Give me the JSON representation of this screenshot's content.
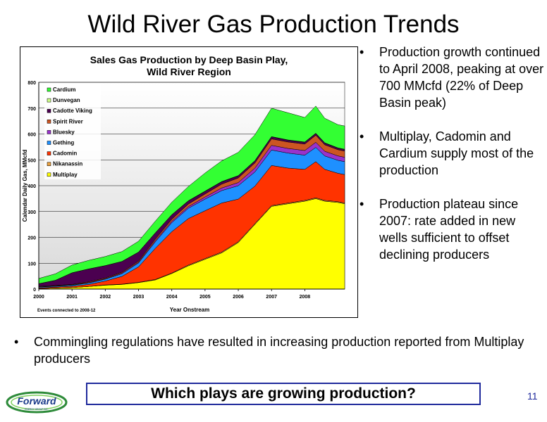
{
  "slide": {
    "title": "Wild River Gas Production Trends",
    "page_number": "11",
    "question": "Which plays are growing production?",
    "right_bullets": [
      "Production growth continued to April 2008, peaking at over 700 MMcfd (22% of Deep Basin peak)",
      "Multiplay, Cadomin and Cardium supply most of the production",
      "Production plateau since 2007: rate added in new wells sufficient to offset declining producers"
    ],
    "bottom_bullets": [
      "Commingling regulations have resulted in increasing production reported from Multiplay producers"
    ],
    "logo": {
      "text": "Forward",
      "tagline": "ENERGY GROUP INC."
    }
  },
  "chart_data": {
    "type": "area",
    "stacked": true,
    "title": "Sales Gas Production by Deep Basin Play, Wild River Region",
    "title_lines": [
      "Sales Gas Production by Deep Basin Play,",
      "Wild River Region"
    ],
    "xlabel": "Year Onstream",
    "ylabel": "Calendar Daily Gas, MMcfd",
    "footnote": "Events connected to 2008-12",
    "xlim": [
      2000,
      2009.2
    ],
    "ylim": [
      0,
      800
    ],
    "xticks": [
      2000,
      2001,
      2002,
      2003,
      2004,
      2005,
      2006,
      2007,
      2008
    ],
    "yticks": [
      0,
      100,
      200,
      300,
      400,
      500,
      600,
      700,
      800
    ],
    "grid": true,
    "legend_position": "top-left",
    "legend_order": [
      "Cardium",
      "Dunvegan",
      "Cadotte Viking",
      "Spirit River",
      "Bluesky",
      "Gething",
      "Cadomin",
      "Nikanassin",
      "Multiplay"
    ],
    "x": [
      2000,
      2000.5,
      2001,
      2001.5,
      2002,
      2002.5,
      2003,
      2003.5,
      2004,
      2004.5,
      2005,
      2005.5,
      2006,
      2006.5,
      2007,
      2007.5,
      2008,
      2008.33,
      2008.6,
      2009,
      2009.2
    ],
    "series": [
      {
        "name": "Multiplay",
        "color": "#ffff00",
        "values": [
          2,
          4,
          6,
          10,
          15,
          18,
          25,
          35,
          60,
          90,
          115,
          140,
          180,
          250,
          320,
          330,
          340,
          350,
          340,
          335,
          330
        ]
      },
      {
        "name": "Nikanassin",
        "color": "#e8a040",
        "values": [
          0,
          0,
          0,
          0,
          1,
          1,
          1,
          2,
          2,
          3,
          3,
          3,
          3,
          3,
          3,
          3,
          3,
          3,
          3,
          3,
          3
        ]
      },
      {
        "name": "Cadomin",
        "color": "#ff3300",
        "values": [
          3,
          4,
          5,
          8,
          15,
          30,
          60,
          120,
          160,
          180,
          185,
          190,
          165,
          145,
          155,
          135,
          120,
          140,
          120,
          110,
          110
        ]
      },
      {
        "name": "Gething",
        "color": "#1e90ff",
        "values": [
          3,
          3,
          4,
          5,
          7,
          10,
          15,
          25,
          35,
          40,
          45,
          48,
          52,
          55,
          60,
          58,
          55,
          55,
          52,
          50,
          50
        ]
      },
      {
        "name": "Bluesky",
        "color": "#9932cc",
        "values": [
          1,
          1,
          1,
          2,
          2,
          3,
          3,
          4,
          5,
          6,
          8,
          10,
          12,
          15,
          18,
          18,
          18,
          20,
          18,
          17,
          17
        ]
      },
      {
        "name": "Spirit River",
        "color": "#cc5522",
        "values": [
          2,
          2,
          2,
          3,
          3,
          3,
          4,
          6,
          8,
          10,
          12,
          15,
          18,
          20,
          25,
          25,
          25,
          27,
          25,
          24,
          24
        ]
      },
      {
        "name": "Cadotte Viking",
        "color": "#4b0050",
        "values": [
          10,
          20,
          45,
          50,
          48,
          42,
          35,
          25,
          18,
          12,
          10,
          9,
          8,
          8,
          8,
          7,
          7,
          7,
          7,
          6,
          6
        ]
      },
      {
        "name": "Dunvegan",
        "color": "#ccff88",
        "values": [
          0,
          0,
          0,
          0,
          0,
          0,
          0,
          0,
          0,
          1,
          1,
          1,
          1,
          1,
          1,
          1,
          1,
          1,
          1,
          1,
          1
        ]
      },
      {
        "name": "Cardium",
        "color": "#33ff33",
        "values": [
          20,
          25,
          30,
          33,
          35,
          38,
          42,
          45,
          48,
          55,
          70,
          80,
          90,
          100,
          110,
          105,
          95,
          105,
          95,
          90,
          90
        ]
      }
    ]
  }
}
